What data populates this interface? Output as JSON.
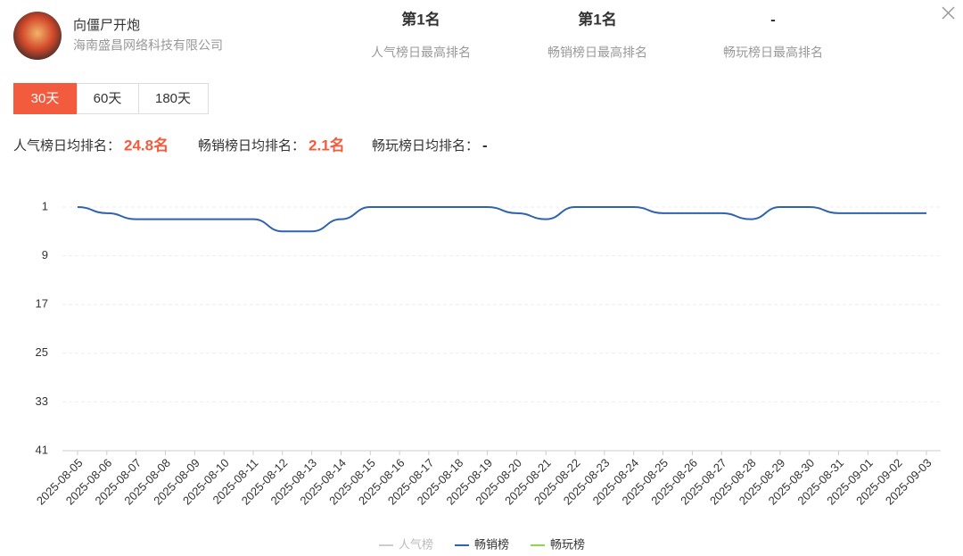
{
  "header": {
    "title": "向僵尸开炮",
    "company": "海南盛昌网络科技有限公司",
    "stats": [
      {
        "value": "第1名",
        "label": "人气榜日最高排名"
      },
      {
        "value": "第1名",
        "label": "畅销榜日最高排名"
      },
      {
        "value": "-",
        "label": "畅玩榜日最高排名"
      }
    ]
  },
  "tabs": [
    "30天",
    "60天",
    "180天"
  ],
  "averages": [
    {
      "label": "人气榜日均排名：",
      "value": "24.8名"
    },
    {
      "label": "畅销榜日均排名：",
      "value": "2.1名"
    },
    {
      "label": "畅玩榜日均排名：",
      "value": "-"
    }
  ],
  "chart_data": {
    "type": "line",
    "inverted": true,
    "categories": [
      "2025-08-05",
      "2025-08-06",
      "2025-08-07",
      "2025-08-08",
      "2025-08-09",
      "2025-08-10",
      "2025-08-11",
      "2025-08-12",
      "2025-08-13",
      "2025-08-14",
      "2025-08-15",
      "2025-08-16",
      "2025-08-17",
      "2025-08-18",
      "2025-08-19",
      "2025-08-20",
      "2025-08-21",
      "2025-08-22",
      "2025-08-23",
      "2025-08-24",
      "2025-08-25",
      "2025-08-26",
      "2025-08-27",
      "2025-08-28",
      "2025-08-29",
      "2025-08-30",
      "2025-08-31",
      "2025-09-01",
      "2025-09-02",
      "2025-09-03"
    ],
    "series": [
      {
        "name": "人气榜",
        "color": "#cccccc",
        "values": [
          null,
          null,
          null,
          null,
          null,
          null,
          null,
          null,
          null,
          null,
          null,
          null,
          null,
          null,
          null,
          null,
          null,
          null,
          null,
          null,
          null,
          null,
          null,
          null,
          null,
          null,
          null,
          null,
          null,
          null
        ]
      },
      {
        "name": "畅销榜",
        "color": "#2f63b0",
        "values": [
          1,
          2,
          3,
          3,
          3,
          3,
          3,
          5,
          5,
          3,
          1,
          1,
          1,
          1,
          1,
          2,
          3,
          1,
          1,
          1,
          2,
          2,
          2,
          3,
          1,
          1,
          2,
          2,
          2,
          2
        ]
      },
      {
        "name": "畅玩榜",
        "color": "#8fd64c",
        "values": [
          null,
          null,
          null,
          null,
          null,
          null,
          null,
          null,
          null,
          null,
          null,
          null,
          null,
          null,
          null,
          null,
          null,
          null,
          null,
          null,
          null,
          null,
          null,
          null,
          null,
          null,
          null,
          null,
          null,
          null
        ]
      }
    ],
    "ylim": [
      1,
      41
    ],
    "yticks": [
      1,
      9,
      17,
      25,
      33,
      41
    ],
    "grid": true
  }
}
